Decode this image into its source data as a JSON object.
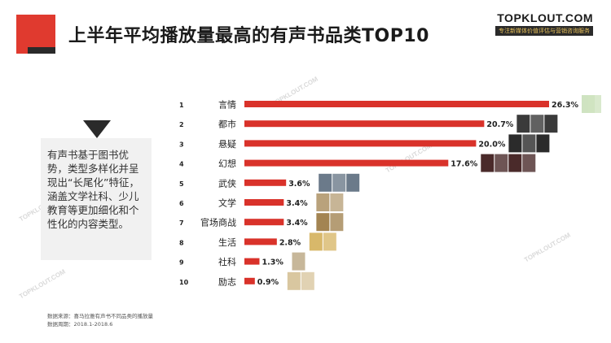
{
  "title": "上半年平均播放量最高的有声书品类TOP10",
  "brand": {
    "name": "TOPKLOUT.COM",
    "sub": "专注新媒体价值评估与营销咨询服务",
    "watermark": "TOPKLOUT.COM"
  },
  "callout": {
    "text": "有声书基于图书优势，类型多样化并呈现出“长尾化”特征，涵盖文学社科、少儿教育等更加细化和个性化的内容类型。"
  },
  "footer": {
    "source": "数据来源：喜马拉雅有声书不同品类的播放量",
    "period": "数据周期：2018.1-2018.6"
  },
  "colors": {
    "accent": "#e03a2f",
    "dark": "#2a2a2a",
    "bar": "#d9322a"
  },
  "chart_data": {
    "type": "bar",
    "orientation": "horizontal",
    "title": "上半年平均播放量最高的有声书品类TOP10",
    "ranks": [
      "1",
      "2",
      "3",
      "4",
      "5",
      "6",
      "7",
      "8",
      "9",
      "10"
    ],
    "categories": [
      "言情",
      "都市",
      "悬疑",
      "幻想",
      "武侠",
      "文学",
      "官场商战",
      "生活",
      "社科",
      "励志"
    ],
    "values": [
      26.3,
      20.7,
      20.0,
      17.6,
      3.6,
      3.4,
      3.4,
      2.8,
      1.3,
      0.9
    ],
    "labels": [
      "26.3%",
      "20.7%",
      "20.0%",
      "17.6%",
      "3.6%",
      "3.4%",
      "3.4%",
      "2.8%",
      "1.3%",
      "0.9%"
    ],
    "unit": "%",
    "xlim": [
      0,
      26.3
    ],
    "grid": false,
    "legend": "none"
  }
}
